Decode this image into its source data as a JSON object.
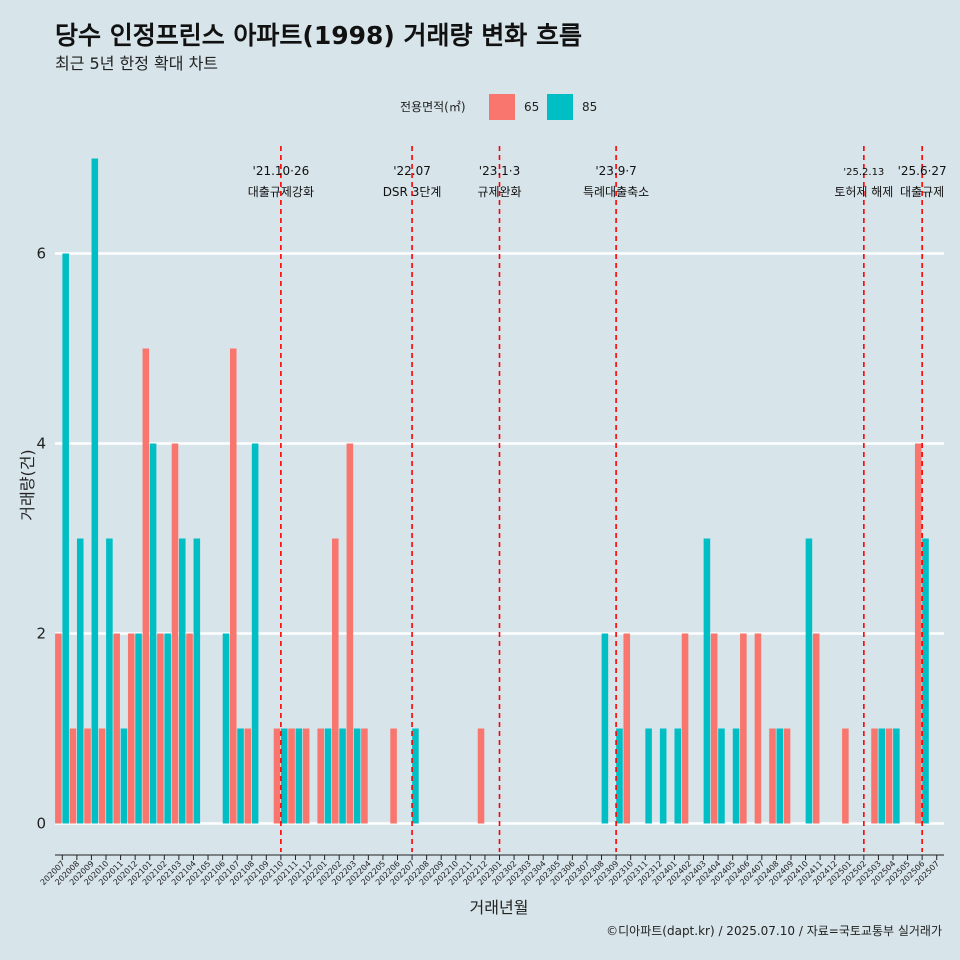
{
  "colors": {
    "background": "#d7e4ea",
    "grid": "#ffffff",
    "event_line": "#ff0000",
    "area_65": "#f8766d",
    "area_85": "#00bfc4"
  },
  "chart_data": {
    "type": "bar",
    "title": "당수 인정프린스 아파트(1998) 거래량 변화 흐름",
    "subtitle": "최근 5년 한정 확대 차트",
    "xlabel": "거래년월",
    "ylabel": "거래량(건)",
    "ylim": [
      -0.3,
      7.3
    ],
    "yticks": [
      0,
      2,
      4,
      6
    ],
    "grid": true,
    "legend": {
      "title": "전용면적(㎡)",
      "position": "top",
      "entries": [
        "65",
        "85"
      ]
    },
    "categories": [
      "202007",
      "202008",
      "202009",
      "202010",
      "202011",
      "202012",
      "202101",
      "202102",
      "202103",
      "202104",
      "202105",
      "202106",
      "202107",
      "202108",
      "202109",
      "202110",
      "202111",
      "202112",
      "202201",
      "202202",
      "202203",
      "202204",
      "202205",
      "202206",
      "202207",
      "202208",
      "202209",
      "202210",
      "202211",
      "202212",
      "202301",
      "202302",
      "202303",
      "202304",
      "202305",
      "202306",
      "202307",
      "202308",
      "202309",
      "202310",
      "202311",
      "202312",
      "202401",
      "202402",
      "202403",
      "202404",
      "202405",
      "202406",
      "202407",
      "202408",
      "202409",
      "202410",
      "202411",
      "202412",
      "202501",
      "202502",
      "202503",
      "202504",
      "202505",
      "202506",
      "202507"
    ],
    "series": [
      {
        "name": "65",
        "color": "#f8766d",
        "values": [
          2,
          1,
          1,
          1,
          2,
          2,
          5,
          2,
          4,
          2,
          0,
          0,
          5,
          1,
          0,
          1,
          1,
          1,
          1,
          3,
          4,
          1,
          0,
          1,
          0,
          0,
          0,
          0,
          0,
          1,
          0,
          0,
          0,
          0,
          0,
          0,
          0,
          0,
          0,
          2,
          0,
          0,
          0,
          2,
          0,
          2,
          0,
          2,
          2,
          1,
          1,
          0,
          2,
          0,
          1,
          0,
          1,
          1,
          0,
          4,
          0
        ]
      },
      {
        "name": "85",
        "color": "#00bfc4",
        "values": [
          6,
          3,
          7,
          3,
          1,
          2,
          4,
          2,
          3,
          3,
          0,
          2,
          1,
          4,
          0,
          1,
          1,
          0,
          1,
          1,
          1,
          0,
          0,
          0,
          1,
          0,
          0,
          0,
          0,
          0,
          0,
          0,
          0,
          0,
          0,
          0,
          0,
          2,
          1,
          0,
          1,
          1,
          1,
          0,
          3,
          1,
          1,
          0,
          0,
          1,
          0,
          3,
          0,
          0,
          0,
          0,
          1,
          1,
          0,
          3,
          0
        ]
      }
    ],
    "events": [
      {
        "date": "'21.10·26",
        "label": "대출규제강화",
        "category": "202110"
      },
      {
        "date": "'22.07",
        "label": "DSR 3단계",
        "category": "202207"
      },
      {
        "date": "'23.1·3",
        "label": "규제완화",
        "category": "202301"
      },
      {
        "date": "'23.9·7",
        "label": "특례대출축소",
        "category": "202309"
      },
      {
        "date": "'25.2.13",
        "label": "토허제 해제",
        "category": "202502",
        "small": true
      },
      {
        "date": "'25.6·27",
        "label": "대출규제",
        "category": "202506"
      }
    ],
    "caption": "©디아파트(dapt.kr) / 2025.07.10 / 자료=국토교통부 실거래가"
  }
}
